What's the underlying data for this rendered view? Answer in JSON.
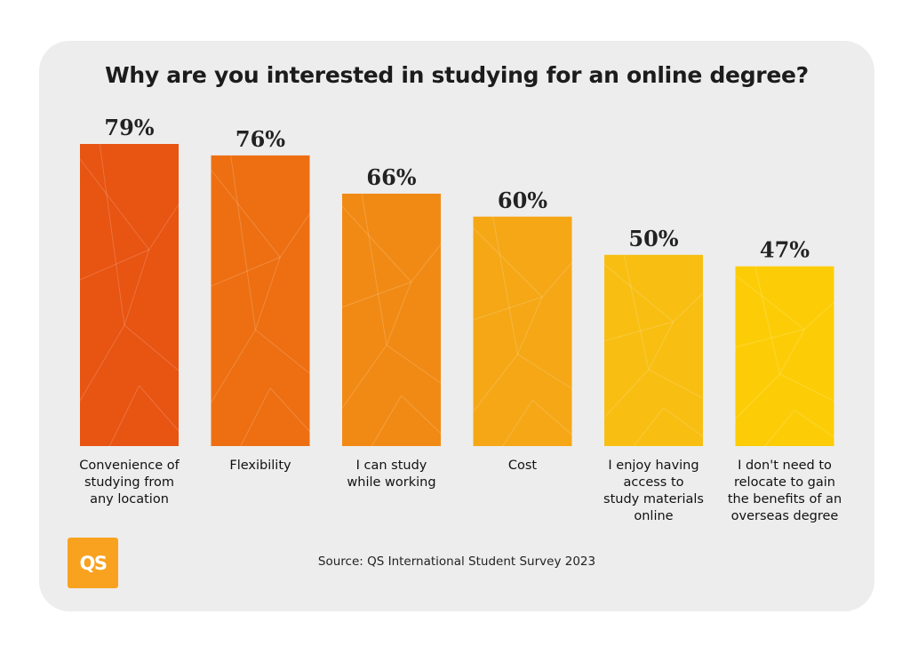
{
  "title": "Why are you interested in studying for an online degree?",
  "source": "Source: QS International Student Survey 2023",
  "logo_text": "QS",
  "chart_data": {
    "type": "bar",
    "title": "Why are you interested in studying for an online degree?",
    "xlabel": "",
    "ylabel": "",
    "ylim": [
      0,
      100
    ],
    "grid": false,
    "legend": "none",
    "categories": [
      "Convenience of studying from any location",
      "Flexibility",
      "I can study while working",
      "Cost",
      "I enjoy having access to study materials online",
      "I don't need to relocate to gain the benefits of an overseas degree"
    ],
    "category_lines": [
      [
        "Convenience of",
        "studying from",
        "any location"
      ],
      [
        "Flexibility"
      ],
      [
        "I can study",
        "while working"
      ],
      [
        "Cost"
      ],
      [
        "I enjoy having",
        "access to",
        "study materials",
        "online"
      ],
      [
        "I don't need to",
        "relocate to gain",
        "the benefits of an",
        "overseas degree"
      ]
    ],
    "values": [
      79,
      76,
      66,
      60,
      50,
      47
    ],
    "value_labels": [
      "79%",
      "76%",
      "66%",
      "60%",
      "50%",
      "47%"
    ],
    "colors": [
      "#e85412",
      "#ed6f12",
      "#f18a14",
      "#f5a716",
      "#f8be12",
      "#fccd06"
    ]
  }
}
